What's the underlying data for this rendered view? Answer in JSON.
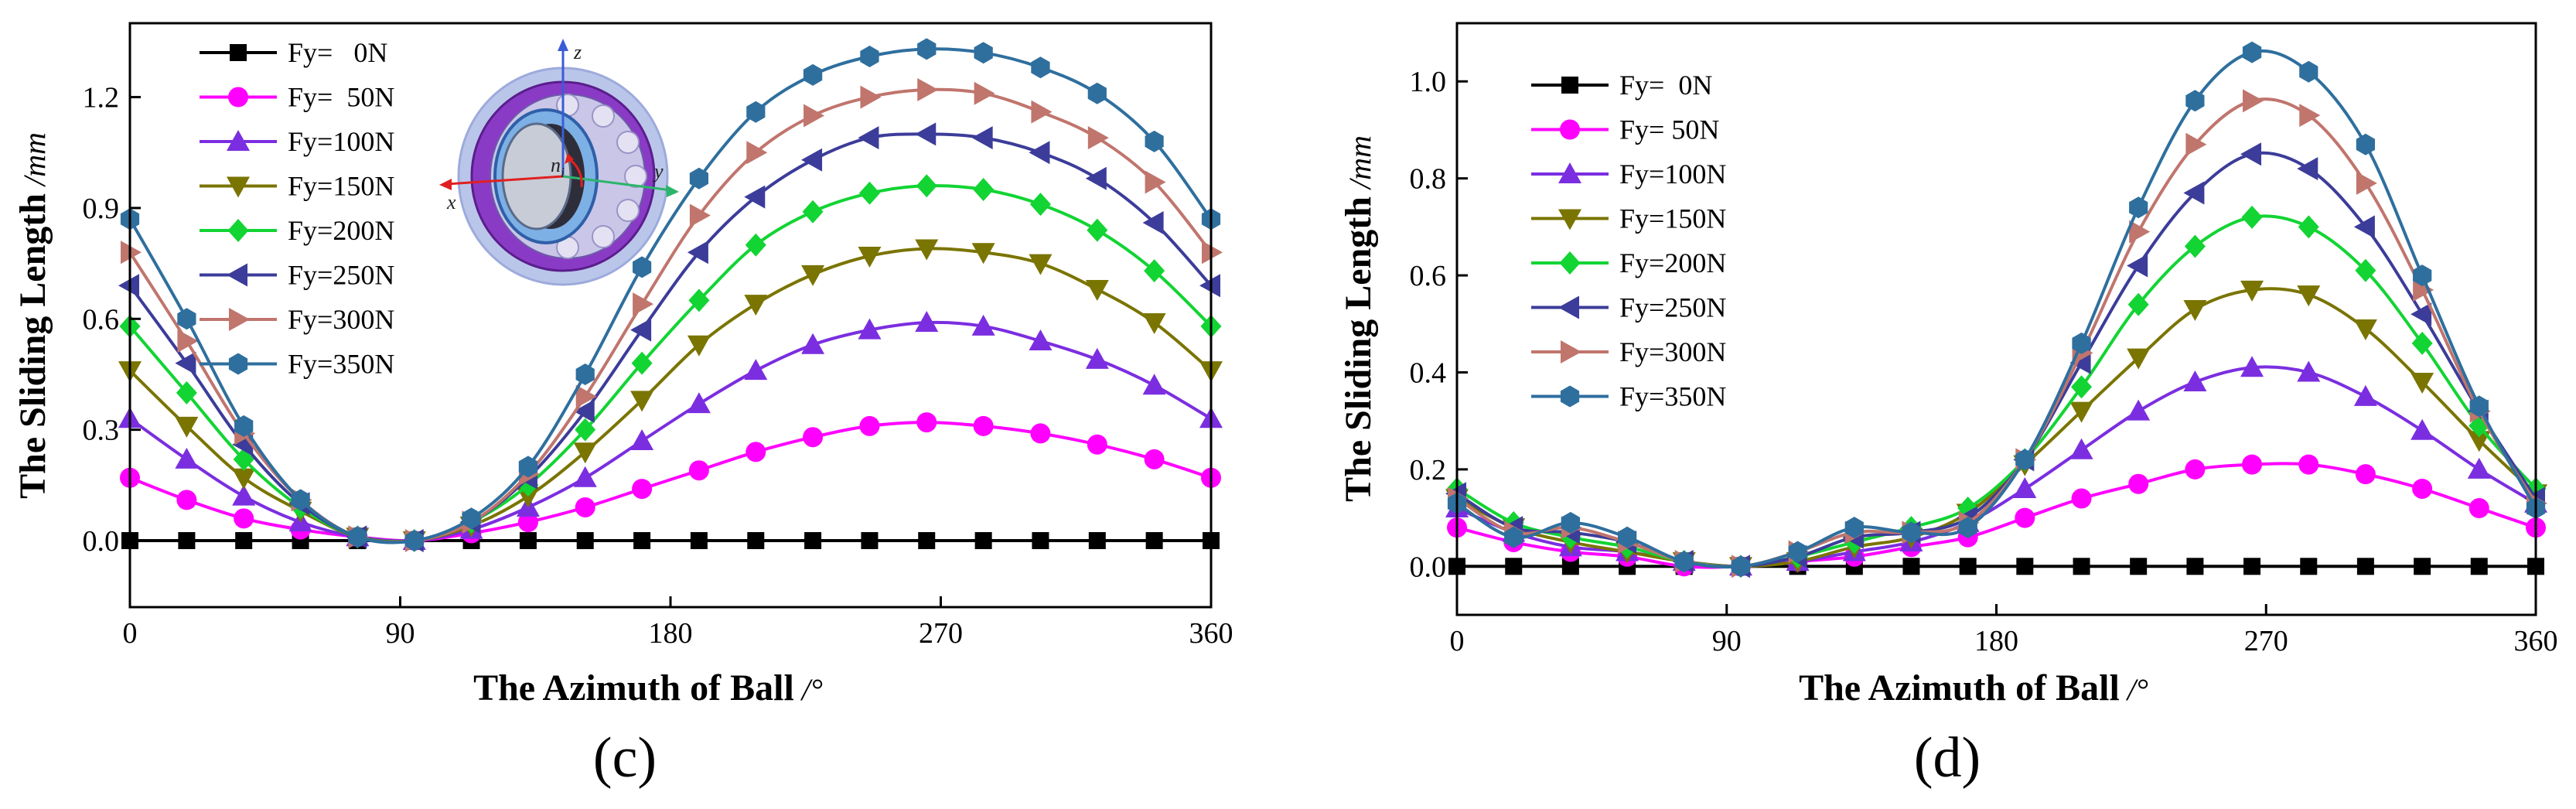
{
  "chart_data": [
    {
      "type": "line",
      "panel_label": "(c)",
      "xlabel": "The Azimuth of Ball",
      "xunit": "/°",
      "ylabel": "The Sliding Length",
      "yunit": "/mm",
      "xlim": [
        0,
        360
      ],
      "ylim": [
        -0.18,
        1.4
      ],
      "xticks": [
        "0",
        "90",
        "180",
        "270",
        "360"
      ],
      "yticks": [
        "0.0",
        "0.3",
        "0.6",
        "0.9",
        "1.2"
      ],
      "x": [
        0,
        18.9,
        37.9,
        56.8,
        75.8,
        94.7,
        113.7,
        132.6,
        151.6,
        170.5,
        189.5,
        208.4,
        227.4,
        246.3,
        265.3,
        284.2,
        303.2,
        322.1,
        341.1,
        360
      ],
      "legend_position": "top-left",
      "inset": {
        "axis_x": "x",
        "axis_y": "y",
        "axis_z": "z",
        "speed": "n",
        "speed_sub": "i"
      },
      "series": [
        {
          "name": "Fy=   0N",
          "color": "#000000",
          "marker": "square",
          "values": [
            0,
            0,
            0,
            0,
            0,
            0,
            0,
            0,
            0,
            0,
            0,
            0,
            0,
            0,
            0,
            0,
            0,
            0,
            0,
            0
          ]
        },
        {
          "name": "Fy=  50N",
          "color": "#ff00ff",
          "marker": "circle",
          "values": [
            0.17,
            0.11,
            0.06,
            0.03,
            0.01,
            0,
            0.02,
            0.05,
            0.09,
            0.14,
            0.19,
            0.24,
            0.28,
            0.31,
            0.32,
            0.31,
            0.29,
            0.26,
            0.22,
            0.17
          ]
        },
        {
          "name": "Fy=100N",
          "color": "#7b2ee0",
          "marker": "triangle-up",
          "values": [
            0.33,
            0.22,
            0.12,
            0.05,
            0.01,
            0,
            0.03,
            0.09,
            0.17,
            0.27,
            0.37,
            0.46,
            0.53,
            0.57,
            0.59,
            0.58,
            0.54,
            0.49,
            0.42,
            0.33
          ]
        },
        {
          "name": "Fy=150N",
          "color": "#7a7400",
          "marker": "triangle-down",
          "values": [
            0.46,
            0.31,
            0.17,
            0.08,
            0.01,
            0,
            0.04,
            0.12,
            0.24,
            0.38,
            0.53,
            0.64,
            0.72,
            0.77,
            0.79,
            0.78,
            0.75,
            0.68,
            0.59,
            0.46
          ]
        },
        {
          "name": "Fy=200N",
          "color": "#12d433",
          "marker": "diamond",
          "values": [
            0.58,
            0.4,
            0.22,
            0.09,
            0.01,
            0,
            0.05,
            0.15,
            0.3,
            0.48,
            0.65,
            0.8,
            0.89,
            0.94,
            0.96,
            0.95,
            0.91,
            0.84,
            0.73,
            0.58
          ]
        },
        {
          "name": "Fy=250N",
          "color": "#3c3c9a",
          "marker": "triangle-left",
          "values": [
            0.69,
            0.48,
            0.26,
            0.1,
            0.01,
            0,
            0.05,
            0.17,
            0.35,
            0.57,
            0.78,
            0.93,
            1.03,
            1.09,
            1.1,
            1.09,
            1.05,
            0.98,
            0.86,
            0.69
          ]
        },
        {
          "name": "Fy=300N",
          "color": "#c0756d",
          "marker": "triangle-right",
          "values": [
            0.78,
            0.54,
            0.29,
            0.11,
            0.01,
            0,
            0.05,
            0.18,
            0.39,
            0.64,
            0.88,
            1.05,
            1.15,
            1.2,
            1.22,
            1.21,
            1.16,
            1.09,
            0.97,
            0.78
          ]
        },
        {
          "name": "Fy=350N",
          "color": "#2e6f9e",
          "marker": "hexagon",
          "values": [
            0.87,
            0.6,
            0.31,
            0.11,
            0.01,
            0,
            0.06,
            0.2,
            0.45,
            0.74,
            0.98,
            1.16,
            1.26,
            1.31,
            1.33,
            1.32,
            1.28,
            1.21,
            1.08,
            0.87
          ]
        }
      ]
    },
    {
      "type": "line",
      "panel_label": "(d)",
      "xlabel": "The Azimuth of Ball",
      "xunit": "/°",
      "ylabel": "The Sliding Length",
      "yunit": "/mm",
      "xlim": [
        0,
        360
      ],
      "ylim": [
        -0.1,
        1.12
      ],
      "xticks": [
        "0",
        "90",
        "180",
        "270",
        "360"
      ],
      "yticks": [
        "0.0",
        "0.2",
        "0.4",
        "0.6",
        "0.8",
        "1.0"
      ],
      "x": [
        0,
        18.9,
        37.9,
        56.8,
        75.8,
        94.7,
        113.7,
        132.6,
        151.6,
        170.5,
        189.5,
        208.4,
        227.4,
        246.3,
        265.3,
        284.2,
        303.2,
        322.1,
        341.1,
        360
      ],
      "legend_position": "top-left",
      "series": [
        {
          "name": "Fy=  0N",
          "color": "#000000",
          "marker": "square",
          "values": [
            0,
            0,
            0,
            0,
            0,
            0,
            0,
            0,
            0,
            0,
            0,
            0,
            0,
            0,
            0,
            0,
            0,
            0,
            0,
            0
          ]
        },
        {
          "name": "Fy= 50N",
          "color": "#ff00ff",
          "marker": "circle",
          "values": [
            0.08,
            0.05,
            0.03,
            0.02,
            0,
            0,
            0.01,
            0.02,
            0.04,
            0.06,
            0.1,
            0.14,
            0.17,
            0.2,
            0.21,
            0.21,
            0.19,
            0.16,
            0.12,
            0.08
          ]
        },
        {
          "name": "Fy=100N",
          "color": "#7b2ee0",
          "marker": "triangle-up",
          "values": [
            0.12,
            0.07,
            0.04,
            0.03,
            0.01,
            0,
            0.01,
            0.03,
            0.05,
            0.09,
            0.16,
            0.24,
            0.32,
            0.38,
            0.41,
            0.4,
            0.35,
            0.28,
            0.2,
            0.13
          ]
        },
        {
          "name": "Fy=150N",
          "color": "#7a7400",
          "marker": "triangle-down",
          "values": [
            0.14,
            0.08,
            0.05,
            0.03,
            0.01,
            0,
            0.01,
            0.04,
            0.06,
            0.11,
            0.21,
            0.32,
            0.43,
            0.53,
            0.57,
            0.56,
            0.49,
            0.38,
            0.26,
            0.15
          ]
        },
        {
          "name": "Fy=200N",
          "color": "#12d433",
          "marker": "diamond",
          "values": [
            0.16,
            0.09,
            0.06,
            0.04,
            0.01,
            0,
            0.02,
            0.05,
            0.08,
            0.12,
            0.22,
            0.37,
            0.54,
            0.66,
            0.72,
            0.7,
            0.61,
            0.46,
            0.29,
            0.16
          ]
        },
        {
          "name": "Fy=250N",
          "color": "#3c3c9a",
          "marker": "triangle-left",
          "values": [
            0.15,
            0.08,
            0.07,
            0.05,
            0.01,
            0,
            0.02,
            0.06,
            0.07,
            0.1,
            0.22,
            0.42,
            0.62,
            0.77,
            0.85,
            0.82,
            0.7,
            0.52,
            0.32,
            0.14
          ]
        },
        {
          "name": "Fy=300N",
          "color": "#c0756d",
          "marker": "triangle-right",
          "values": [
            0.14,
            0.07,
            0.08,
            0.05,
            0.01,
            0,
            0.03,
            0.07,
            0.07,
            0.09,
            0.22,
            0.44,
            0.69,
            0.87,
            0.96,
            0.93,
            0.79,
            0.57,
            0.32,
            0.13
          ]
        },
        {
          "name": "Fy=350N",
          "color": "#2e6f9e",
          "marker": "hexagon",
          "values": [
            0.13,
            0.06,
            0.09,
            0.06,
            0.01,
            0,
            0.03,
            0.08,
            0.07,
            0.08,
            0.22,
            0.46,
            0.74,
            0.96,
            1.06,
            1.02,
            0.87,
            0.6,
            0.33,
            0.12
          ]
        }
      ]
    }
  ]
}
